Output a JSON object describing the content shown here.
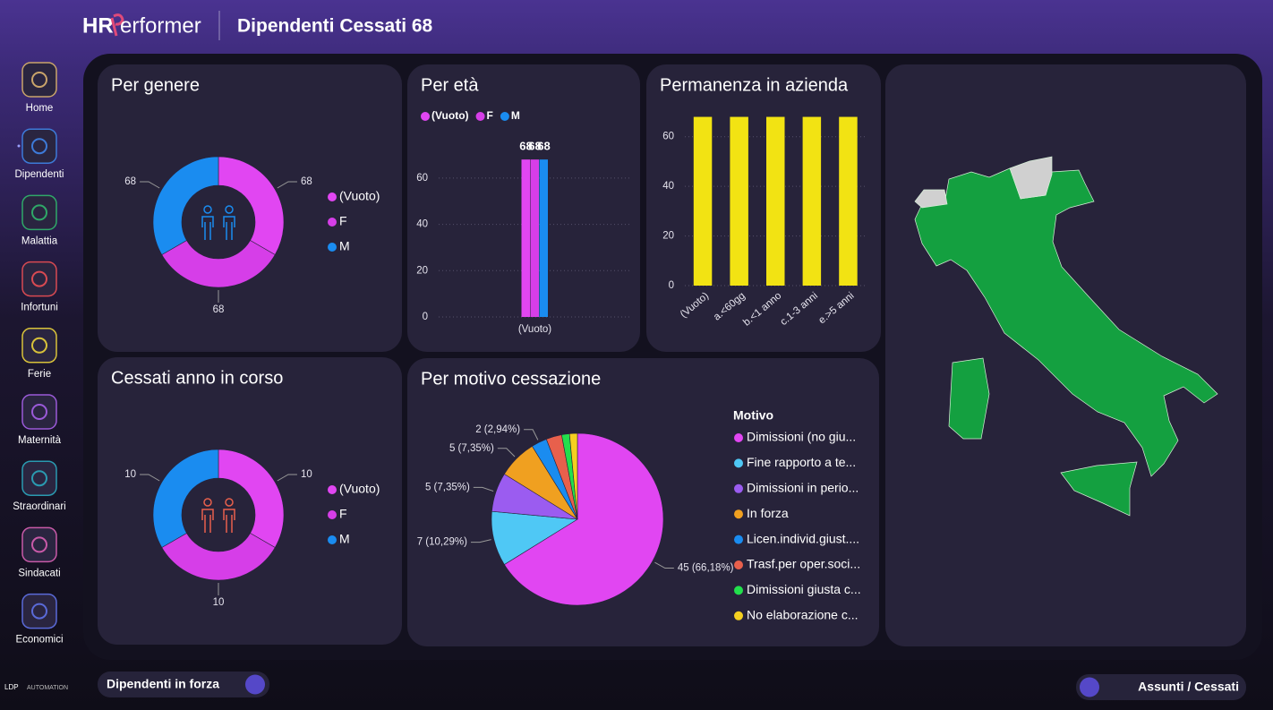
{
  "header": {
    "logo": "HR",
    "logo_suffix": "erformer",
    "title": "Dipendenti Cessati 68"
  },
  "nav": [
    "Home",
    "Dipendenti",
    "Malattia",
    "Infortuni",
    "Ferie",
    "Maternità",
    "Straordinari",
    "Sindacati",
    "Economici"
  ],
  "footer": {
    "brand": "LDP",
    "brand_suffix": "AUTOMATION",
    "toggle_left": "Dipendenti in forza",
    "toggle_right": "Assunti / Cessati"
  },
  "chart_data": [
    {
      "type": "donut",
      "title": "Per genere",
      "categories": [
        "(Vuoto)",
        "F",
        "M"
      ],
      "values": [
        68,
        68,
        68
      ],
      "colors": [
        "#e146f2",
        "#d63ee8",
        "#1a8cf0"
      ]
    },
    {
      "type": "bar",
      "title": "Per età",
      "categories": [
        "(Vuoto)"
      ],
      "series": [
        {
          "name": "(Vuoto)",
          "color": "#e146f2",
          "values": [
            68
          ]
        },
        {
          "name": "F",
          "color": "#d63ee8",
          "values": [
            68
          ]
        },
        {
          "name": "M",
          "color": "#1a8cf0",
          "values": [
            68
          ]
        }
      ],
      "ylim": [
        0,
        70
      ],
      "yticks": [
        0,
        20,
        40,
        60
      ],
      "grid": true,
      "legend": "top-left"
    },
    {
      "type": "bar",
      "title": "Permanenza in azienda",
      "categories": [
        "(Vuoto)",
        "a.<60gg",
        "b.<1 anno",
        "c.1-3 anni",
        "e.>5 anni"
      ],
      "values": [
        68,
        68,
        68,
        68,
        68
      ],
      "color": "#f2e313",
      "ylim": [
        0,
        70
      ],
      "yticks": [
        0,
        20,
        40,
        60
      ],
      "grid": true
    },
    {
      "type": "donut",
      "title": "Cessati anno in corso",
      "categories": [
        "(Vuoto)",
        "F",
        "M"
      ],
      "values": [
        10,
        10,
        10
      ],
      "colors": [
        "#e146f2",
        "#d63ee8",
        "#1a8cf0"
      ]
    },
    {
      "type": "pie",
      "title": "Per motivo cessazione",
      "legend_title": "Motivo",
      "categories": [
        "Dimissioni (no giu...",
        "Fine rapporto a te...",
        "Dimissioni in perio...",
        "In forza",
        "Licen.individ.giust....",
        "Trasf.per oper.soci...",
        "Dimissioni giusta c...",
        "No elaborazione c..."
      ],
      "values": [
        45,
        7,
        5,
        5,
        2,
        2,
        1,
        1
      ],
      "value_labels": [
        "45 (66,18%)",
        "7 (10,29%)",
        "5 (7,35%)",
        "5 (7,35%)",
        "2 (2,94%)",
        null,
        null,
        null
      ],
      "colors": [
        "#e146f2",
        "#4fc8f5",
        "#9b5cf0",
        "#f0a020",
        "#1a8cf0",
        "#e8604c",
        "#22e04c",
        "#f5d020"
      ]
    }
  ]
}
